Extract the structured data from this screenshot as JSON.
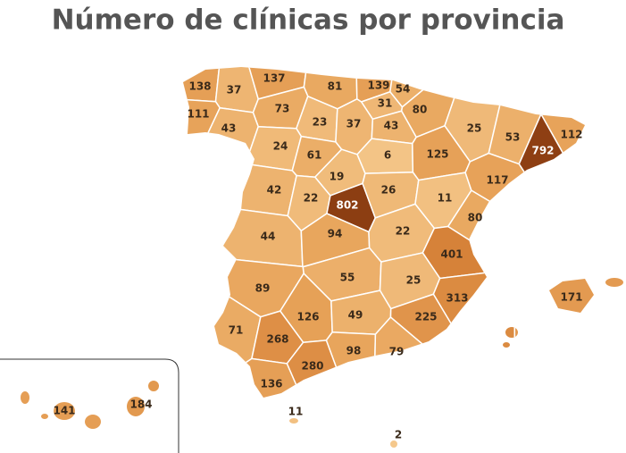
{
  "chart_data": {
    "type": "choropleth",
    "title": "Número de clínicas por provincia",
    "values": [
      138,
      37,
      137,
      81,
      139,
      54,
      111,
      73,
      31,
      80,
      43,
      23,
      37,
      43,
      25,
      53,
      112,
      24,
      61,
      6,
      125,
      792,
      19,
      42,
      22,
      802,
      26,
      11,
      117,
      80,
      44,
      94,
      22,
      401,
      55,
      25,
      313,
      89,
      171,
      126,
      49,
      225,
      71,
      268,
      98,
      79,
      280,
      136,
      11,
      2,
      141,
      184
    ]
  }
}
